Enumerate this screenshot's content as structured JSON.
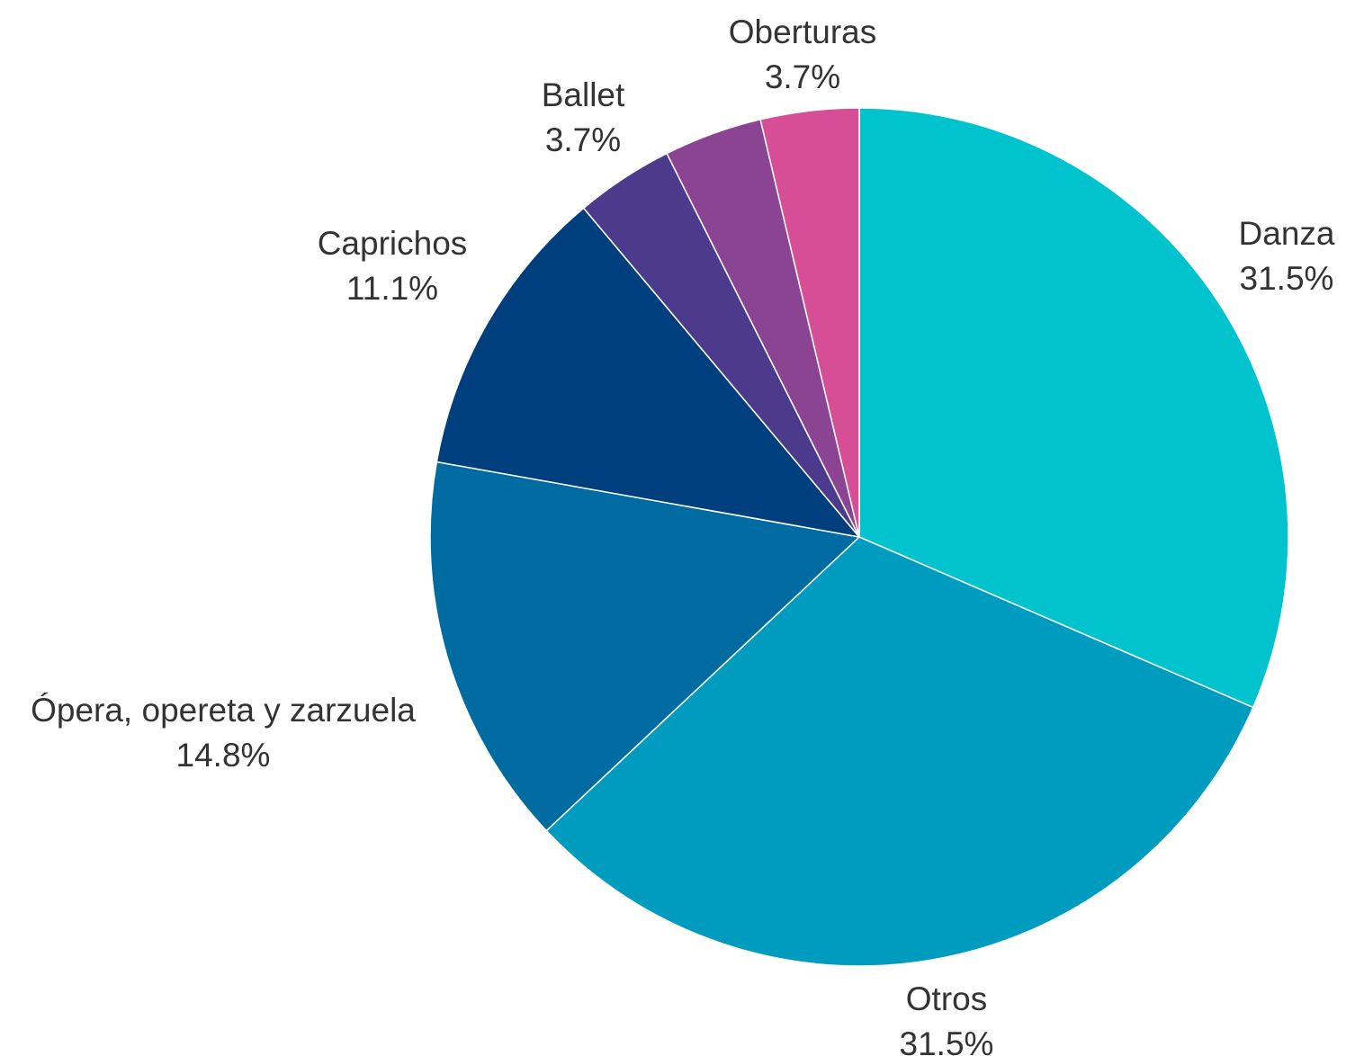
{
  "chart_data": {
    "type": "pie",
    "start_angle_deg": 0,
    "direction": "clockwise",
    "legend": "none",
    "slices": [
      {
        "label": "Danza",
        "value": 31.5,
        "value_label": "31.5%",
        "color": "#00C3CD"
      },
      {
        "label": "Otros",
        "value": 31.5,
        "value_label": "31.5%",
        "color": "#009CC0"
      },
      {
        "label": "Ópera, opereta y zarzuela",
        "value": 14.8,
        "value_label": "14.8%",
        "color": "#006BA1"
      },
      {
        "label": "Caprichos",
        "value": 11.1,
        "value_label": "11.1%",
        "color": "#003F7D"
      },
      {
        "label": "Ballet",
        "value": 3.7,
        "value_label": "3.7%",
        "color": "#4C3A8C"
      },
      {
        "label": "Oberturas",
        "value": 3.7,
        "value_label": "3.7%",
        "color": "#8B4491"
      },
      {
        "label": "",
        "value": 3.7,
        "value_label": "",
        "color": "#D54E96"
      }
    ]
  }
}
